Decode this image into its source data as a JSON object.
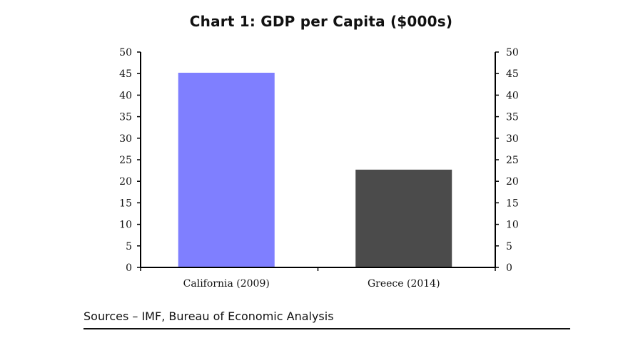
{
  "chart_data": {
    "type": "bar",
    "title": "Chart 1: GDP per Capita ($000s)",
    "categories": [
      "California (2009)",
      "Greece (2014)"
    ],
    "values": [
      45.2,
      22.7
    ],
    "bar_colors": [
      "#7f7fff",
      "#4b4b4b"
    ],
    "ylim": [
      0,
      50
    ],
    "yticks": [
      0,
      5,
      10,
      15,
      20,
      25,
      30,
      35,
      40,
      45,
      50
    ],
    "ytick_labels": [
      "0",
      "5",
      "10",
      "15",
      "20",
      "25",
      "30",
      "35",
      "40",
      "45",
      "50"
    ],
    "secondary_axis": true,
    "grid": false,
    "xlabel": "",
    "ylabel": ""
  },
  "footer": {
    "source": "Sources – IMF, Bureau of Economic Analysis"
  }
}
